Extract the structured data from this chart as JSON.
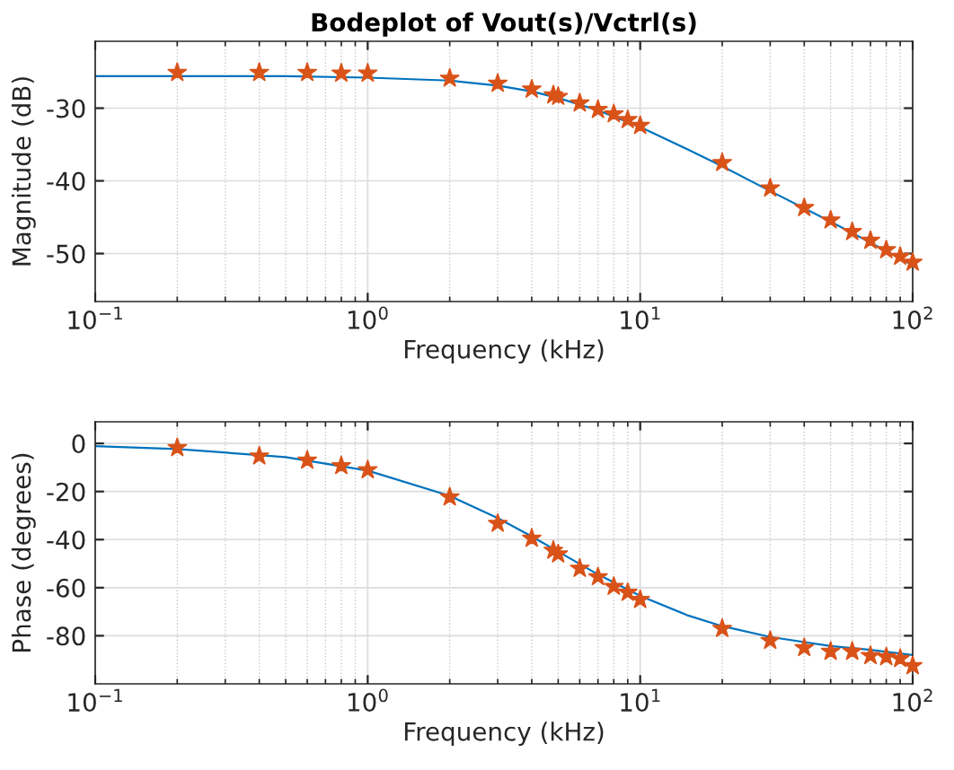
{
  "chart_data": [
    {
      "type": "line",
      "title": "Bodeplot of Vout(s)/Vctrl(s)",
      "xlabel": "Frequency (kHz)",
      "ylabel": "Magnitude (dB)",
      "log": "x",
      "grid": true,
      "xlim": [
        0.1,
        100
      ],
      "xticks": [
        {
          "value": 0.1,
          "label": "10$^{−1}$"
        },
        {
          "value": 1,
          "label": "10$^{0}$"
        },
        {
          "value": 10,
          "label": "10$^{1}$"
        },
        {
          "value": 100,
          "label": "10$^{2}$"
        }
      ],
      "ylim": [
        -56.6,
        -20.8
      ],
      "yticks": [
        -50,
        -40,
        -30
      ],
      "series": [
        {
          "color": "#0072bd",
          "marker": "none",
          "x": [
            0.1,
            0.2,
            0.5,
            1,
            2,
            3,
            4,
            5,
            7,
            10,
            15,
            20,
            30,
            50,
            70,
            100
          ],
          "values": [
            -25.6,
            -25.6,
            -25.6,
            -25.8,
            -26.2,
            -26.9,
            -27.7,
            -28.6,
            -30.3,
            -32.6,
            -35.7,
            -38.0,
            -41.4,
            -45.6,
            -48.5,
            -51.6
          ]
        },
        {
          "type": "scatter",
          "color": "#d95319",
          "marker": "star",
          "x": [
            0.2,
            0.4,
            0.6,
            0.8,
            1,
            2,
            3,
            4,
            4.8,
            5,
            6,
            7,
            8,
            9,
            10,
            20,
            30,
            40,
            50,
            60,
            70,
            80,
            90,
            100
          ],
          "values": [
            -25.1,
            -25.1,
            -25.1,
            -25.2,
            -25.2,
            -25.9,
            -26.6,
            -27.4,
            -28.2,
            -28.4,
            -29.3,
            -30.2,
            -30.8,
            -31.6,
            -32.4,
            -37.5,
            -41.0,
            -43.7,
            -45.4,
            -47.0,
            -48.2,
            -49.5,
            -50.4,
            -51.2
          ]
        }
      ]
    },
    {
      "type": "line",
      "xlabel": "Frequency (kHz)",
      "ylabel": "Phase (degrees)",
      "log": "x",
      "grid": true,
      "xlim": [
        0.1,
        100
      ],
      "xticks": [
        {
          "value": 0.1,
          "label": "10$^{−1}$"
        },
        {
          "value": 1,
          "label": "10$^{0}$"
        },
        {
          "value": 10,
          "label": "10$^{1}$"
        },
        {
          "value": 100,
          "label": "10$^{2}$"
        }
      ],
      "ylim": [
        -100,
        9
      ],
      "yticks": [
        -80,
        -60,
        -40,
        -20,
        0
      ],
      "series": [
        {
          "color": "#0072bd",
          "marker": "none",
          "x": [
            0.1,
            0.2,
            0.5,
            1,
            2,
            3,
            4,
            5,
            7,
            10,
            15,
            20,
            30,
            50,
            70,
            100
          ],
          "values": [
            -1.1,
            -2.3,
            -5.7,
            -11.3,
            -21.8,
            -31,
            -38.7,
            -45,
            -54.5,
            -63.4,
            -71.6,
            -76,
            -80.5,
            -84.3,
            -85.9,
            -88
          ]
        },
        {
          "type": "scatter",
          "color": "#d95319",
          "marker": "star",
          "x": [
            0.2,
            0.4,
            0.6,
            0.8,
            1,
            2,
            3,
            4,
            4.8,
            5,
            6,
            7,
            8,
            9,
            10,
            20,
            30,
            40,
            50,
            60,
            70,
            80,
            90,
            100
          ],
          "values": [
            -1.8,
            -5.3,
            -7,
            -9.3,
            -11,
            -22.3,
            -33.3,
            -39.5,
            -44.5,
            -46,
            -52,
            -55.5,
            -59.5,
            -62,
            -65,
            -77,
            -82,
            -85,
            -86.5,
            -86.5,
            -88.3,
            -88.8,
            -89.5,
            -92.5
          ]
        }
      ]
    }
  ]
}
